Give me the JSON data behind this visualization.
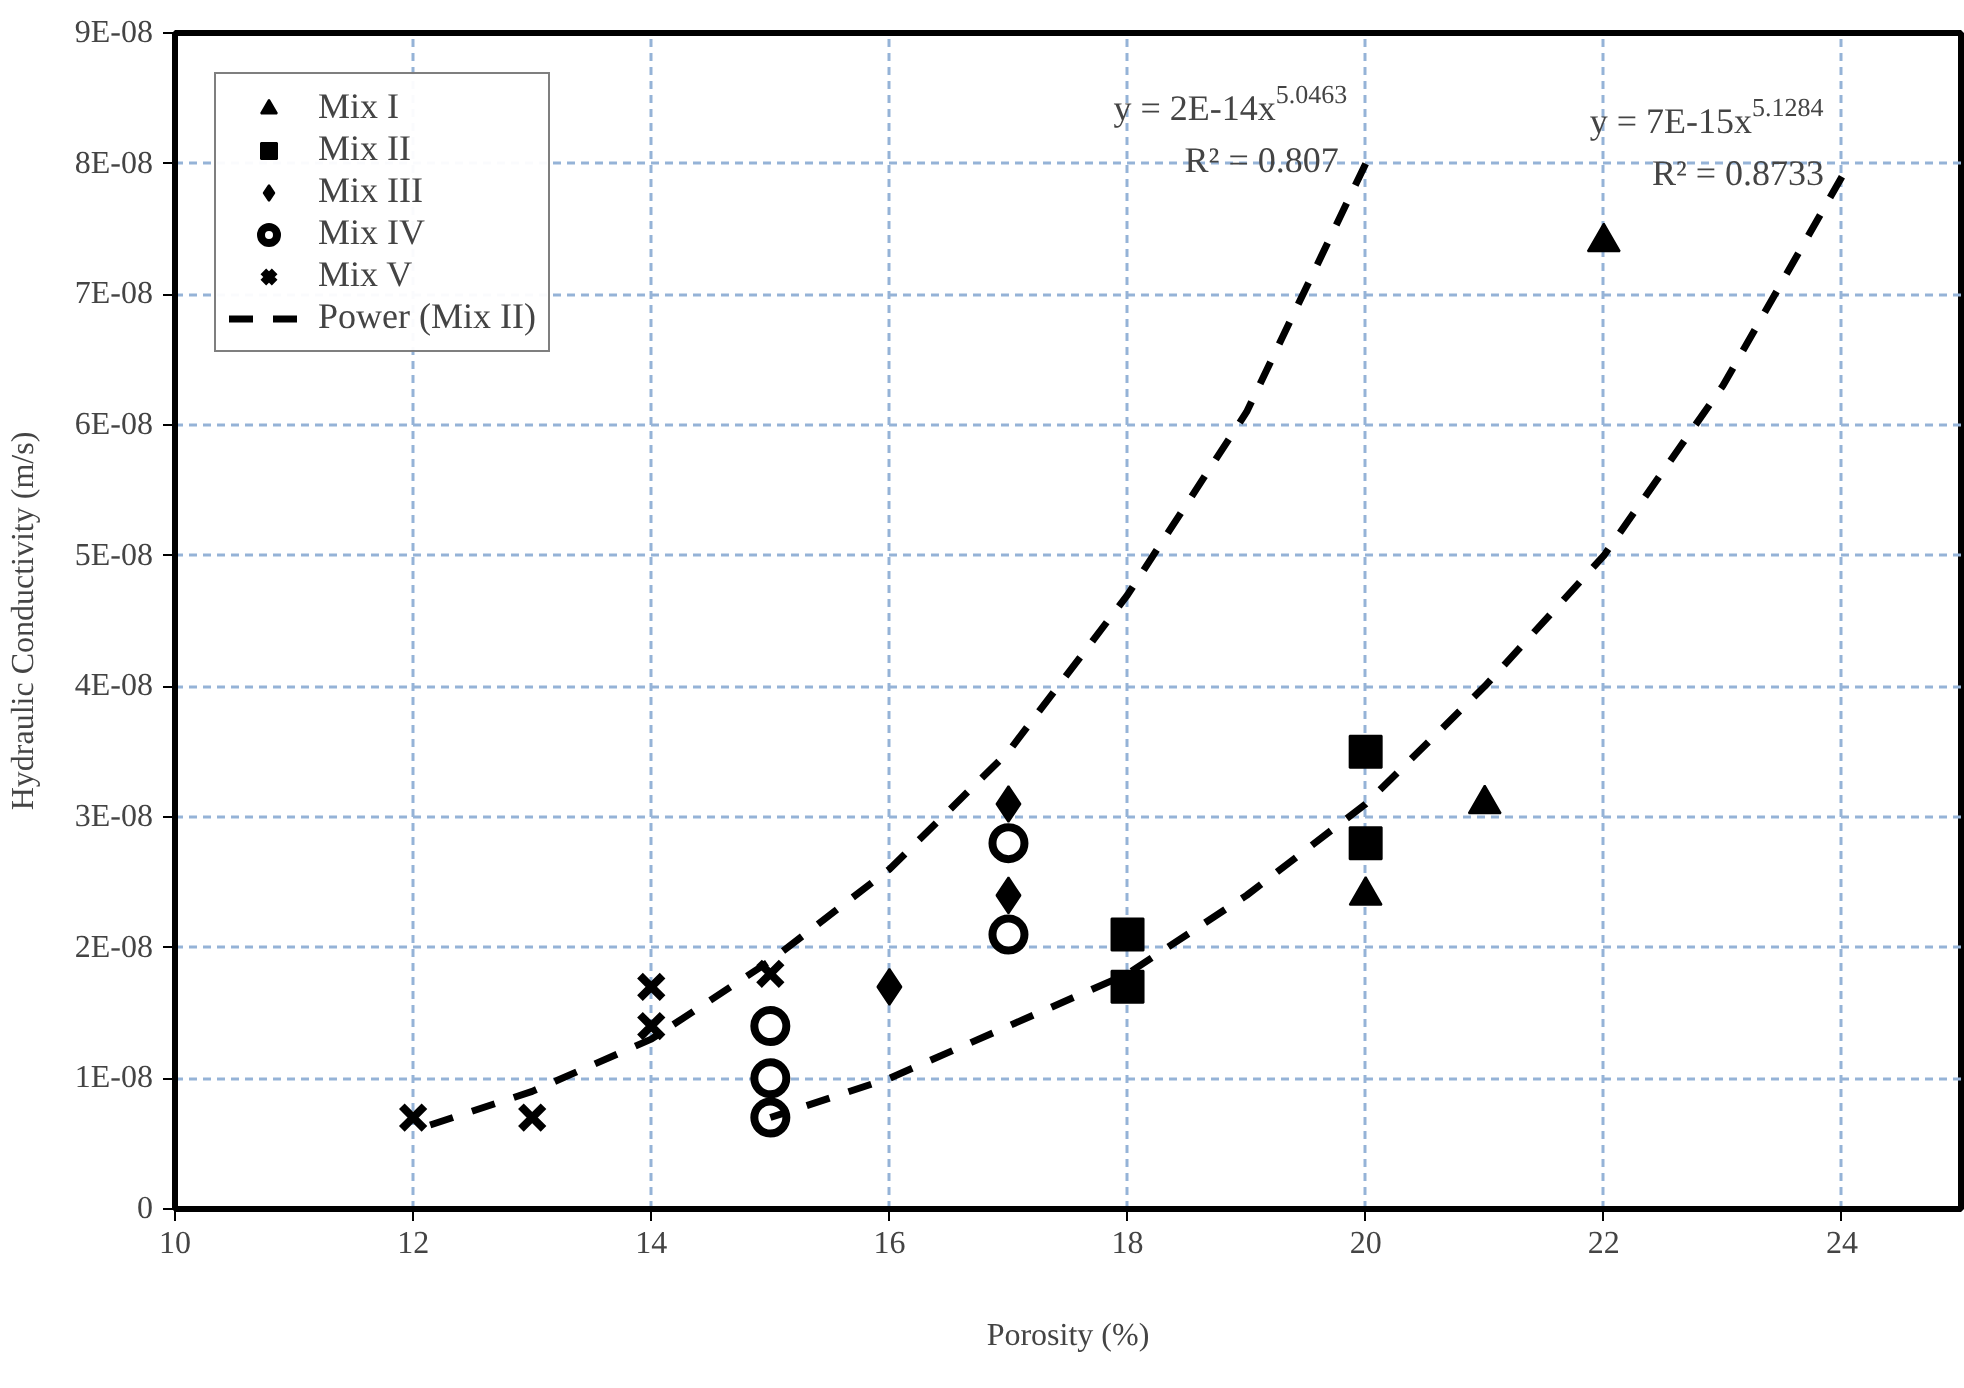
{
  "chart_data": {
    "type": "scatter",
    "xlabel": "Porosity (%)",
    "ylabel": "Hydraulic Conductivity (m/s)",
    "xlim": [
      10,
      25
    ],
    "xticks": [
      10,
      12,
      14,
      16,
      18,
      20,
      22,
      24
    ],
    "ylim": [
      0,
      9e-08
    ],
    "yticks": [
      0,
      {
        "value": 1e-08,
        "label": "1E-08"
      },
      {
        "value": 2e-08,
        "label": "2E-08"
      },
      {
        "value": 3e-08,
        "label": "3E-08"
      },
      {
        "value": 4e-08,
        "label": "4E-08"
      },
      {
        "value": 5e-08,
        "label": "5E-08"
      },
      {
        "value": 6e-08,
        "label": "6E-08"
      },
      {
        "value": 7e-08,
        "label": "7E-08"
      },
      {
        "value": 8e-08,
        "label": "8E-08"
      },
      {
        "value": 9e-08,
        "label": "9E-08"
      }
    ],
    "grid": true,
    "legend": "top left",
    "series": [
      {
        "name": "Mix I",
        "marker": "triangle",
        "color": "#000000",
        "x": [
          22,
          21,
          20
        ],
        "values": [
          7.4e-08,
          3.1e-08,
          2.4e-08
        ]
      },
      {
        "name": "Mix II",
        "marker": "square",
        "color": "#000000",
        "x": [
          18,
          18,
          20,
          20
        ],
        "values": [
          2.1e-08,
          1.7e-08,
          3.5e-08,
          2.8e-08
        ]
      },
      {
        "name": "Mix III",
        "marker": "diamond",
        "color": "#000000",
        "x": [
          17,
          17,
          16
        ],
        "values": [
          3.1e-08,
          2.4e-08,
          1.7e-08
        ]
      },
      {
        "name": "Mix IV",
        "marker": "circle",
        "color": "#000000",
        "x": [
          17,
          17,
          15,
          15,
          15
        ],
        "values": [
          2.8e-08,
          2.1e-08,
          1.4e-08,
          1e-08,
          7e-09
        ]
      },
      {
        "name": "Mix V",
        "marker": "cross",
        "color": "#000000",
        "x": [
          12,
          13,
          14,
          14,
          15
        ],
        "values": [
          7e-09,
          7e-09,
          1.7e-08,
          1.4e-08,
          1.8e-08
        ]
      },
      {
        "name": "Power (Mix II)",
        "type": "line",
        "line_style": "dashed",
        "color": "#000000",
        "x": [
          15,
          16,
          17,
          18,
          19,
          20,
          21,
          22,
          23,
          24
        ],
        "values": [
          7e-09,
          1e-08,
          1.4e-08,
          1.8e-08,
          2.4e-08,
          3.1e-08,
          4e-08,
          5e-08,
          6.3e-08,
          7.9e-08
        ]
      },
      {
        "type": "line",
        "line_style": "dashed",
        "color": "#000000",
        "x": [
          12,
          13,
          14,
          15,
          16,
          17,
          18,
          19,
          20
        ],
        "values": [
          6e-09,
          9e-09,
          1.3e-08,
          1.9e-08,
          2.6e-08,
          3.5e-08,
          4.7e-08,
          6.1e-08,
          8e-08
        ]
      }
    ],
    "annotations": [
      "y = 2E-14x$^{5.0463}$",
      "R² = 0.807",
      "y = 7E-15x$^{5.1284}$",
      "R² = 0.8733"
    ]
  }
}
